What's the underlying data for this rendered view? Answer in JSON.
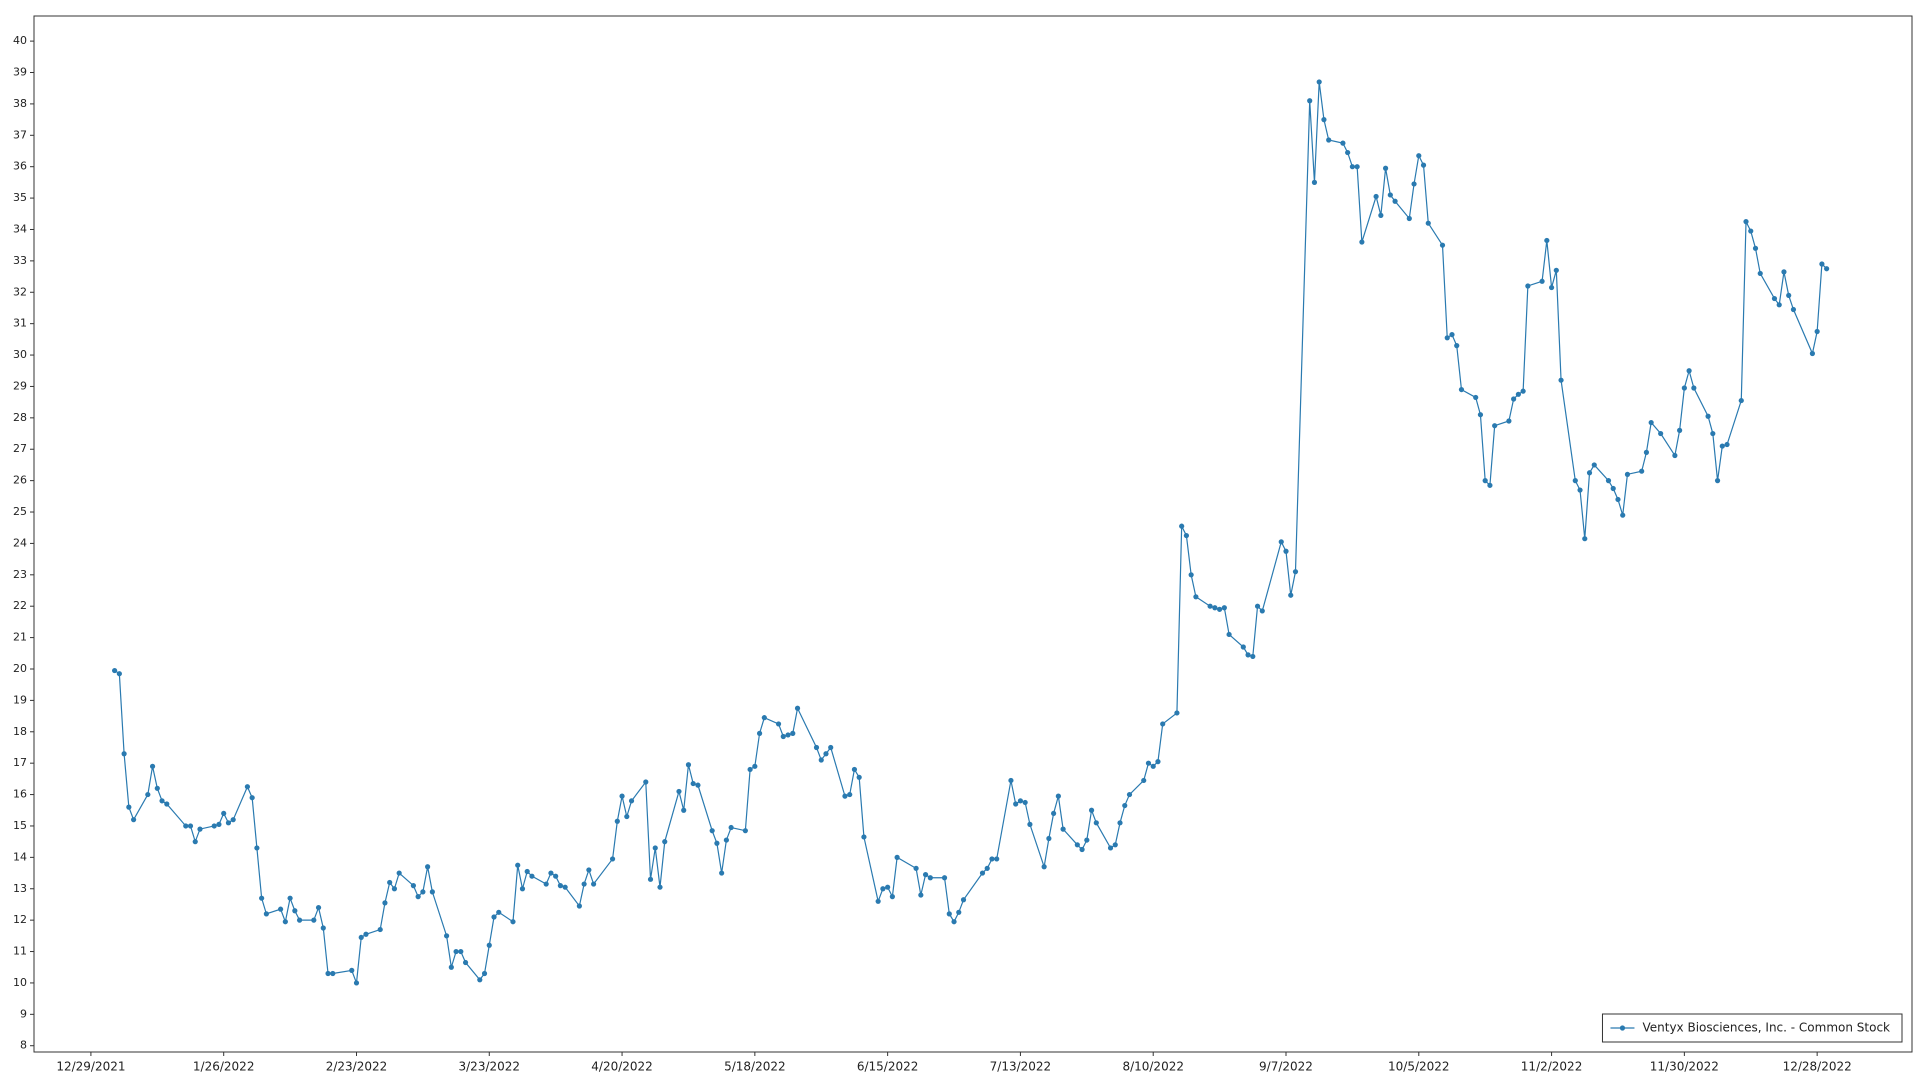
{
  "chart_data": {
    "type": "line",
    "x": [
      "2022-01-03",
      "2022-01-04",
      "2022-01-05",
      "2022-01-06",
      "2022-01-07",
      "2022-01-10",
      "2022-01-11",
      "2022-01-12",
      "2022-01-13",
      "2022-01-14",
      "2022-01-18",
      "2022-01-19",
      "2022-01-20",
      "2022-01-21",
      "2022-01-24",
      "2022-01-25",
      "2022-01-26",
      "2022-01-27",
      "2022-01-28",
      "2022-01-31",
      "2022-02-01",
      "2022-02-02",
      "2022-02-03",
      "2022-02-04",
      "2022-02-07",
      "2022-02-08",
      "2022-02-09",
      "2022-02-10",
      "2022-02-11",
      "2022-02-14",
      "2022-02-15",
      "2022-02-16",
      "2022-02-17",
      "2022-02-18",
      "2022-02-22",
      "2022-02-23",
      "2022-02-24",
      "2022-02-25",
      "2022-02-28",
      "2022-03-01",
      "2022-03-02",
      "2022-03-03",
      "2022-03-04",
      "2022-03-07",
      "2022-03-08",
      "2022-03-09",
      "2022-03-10",
      "2022-03-11",
      "2022-03-14",
      "2022-03-15",
      "2022-03-16",
      "2022-03-17",
      "2022-03-18",
      "2022-03-21",
      "2022-03-22",
      "2022-03-23",
      "2022-03-24",
      "2022-03-25",
      "2022-03-28",
      "2022-03-29",
      "2022-03-30",
      "2022-03-31",
      "2022-04-01",
      "2022-04-04",
      "2022-04-05",
      "2022-04-06",
      "2022-04-07",
      "2022-04-08",
      "2022-04-11",
      "2022-04-12",
      "2022-04-13",
      "2022-04-14",
      "2022-04-18",
      "2022-04-19",
      "2022-04-20",
      "2022-04-21",
      "2022-04-22",
      "2022-04-25",
      "2022-04-26",
      "2022-04-27",
      "2022-04-28",
      "2022-04-29",
      "2022-05-02",
      "2022-05-03",
      "2022-05-04",
      "2022-05-05",
      "2022-05-06",
      "2022-05-09",
      "2022-05-10",
      "2022-05-11",
      "2022-05-12",
      "2022-05-13",
      "2022-05-16",
      "2022-05-17",
      "2022-05-18",
      "2022-05-19",
      "2022-05-20",
      "2022-05-23",
      "2022-05-24",
      "2022-05-25",
      "2022-05-26",
      "2022-05-27",
      "2022-05-31",
      "2022-06-01",
      "2022-06-02",
      "2022-06-03",
      "2022-06-06",
      "2022-06-07",
      "2022-06-08",
      "2022-06-09",
      "2022-06-10",
      "2022-06-13",
      "2022-06-14",
      "2022-06-15",
      "2022-06-16",
      "2022-06-17",
      "2022-06-21",
      "2022-06-22",
      "2022-06-23",
      "2022-06-24",
      "2022-06-27",
      "2022-06-28",
      "2022-06-29",
      "2022-06-30",
      "2022-07-01",
      "2022-07-05",
      "2022-07-06",
      "2022-07-07",
      "2022-07-08",
      "2022-07-11",
      "2022-07-12",
      "2022-07-13",
      "2022-07-14",
      "2022-07-15",
      "2022-07-18",
      "2022-07-19",
      "2022-07-20",
      "2022-07-21",
      "2022-07-22",
      "2022-07-25",
      "2022-07-26",
      "2022-07-27",
      "2022-07-28",
      "2022-07-29",
      "2022-08-01",
      "2022-08-02",
      "2022-08-03",
      "2022-08-04",
      "2022-08-05",
      "2022-08-08",
      "2022-08-09",
      "2022-08-10",
      "2022-08-11",
      "2022-08-12",
      "2022-08-15",
      "2022-08-16",
      "2022-08-17",
      "2022-08-18",
      "2022-08-19",
      "2022-08-22",
      "2022-08-23",
      "2022-08-24",
      "2022-08-25",
      "2022-08-26",
      "2022-08-29",
      "2022-08-30",
      "2022-08-31",
      "2022-09-01",
      "2022-09-02",
      "2022-09-06",
      "2022-09-07",
      "2022-09-08",
      "2022-09-09",
      "2022-09-12",
      "2022-09-13",
      "2022-09-14",
      "2022-09-15",
      "2022-09-16",
      "2022-09-19",
      "2022-09-20",
      "2022-09-21",
      "2022-09-22",
      "2022-09-23",
      "2022-09-26",
      "2022-09-27",
      "2022-09-28",
      "2022-09-29",
      "2022-09-30",
      "2022-10-03",
      "2022-10-04",
      "2022-10-05",
      "2022-10-06",
      "2022-10-07",
      "2022-10-10",
      "2022-10-11",
      "2022-10-12",
      "2022-10-13",
      "2022-10-14",
      "2022-10-17",
      "2022-10-18",
      "2022-10-19",
      "2022-10-20",
      "2022-10-21",
      "2022-10-24",
      "2022-10-25",
      "2022-10-26",
      "2022-10-27",
      "2022-10-28",
      "2022-10-31",
      "2022-11-01",
      "2022-11-02",
      "2022-11-03",
      "2022-11-04",
      "2022-11-07",
      "2022-11-08",
      "2022-11-09",
      "2022-11-10",
      "2022-11-11",
      "2022-11-14",
      "2022-11-15",
      "2022-11-16",
      "2022-11-17",
      "2022-11-18",
      "2022-11-21",
      "2022-11-22",
      "2022-11-23",
      "2022-11-25",
      "2022-11-28",
      "2022-11-29",
      "2022-11-30",
      "2022-12-01",
      "2022-12-02",
      "2022-12-05",
      "2022-12-06",
      "2022-12-07",
      "2022-12-08",
      "2022-12-09",
      "2022-12-12",
      "2022-12-13",
      "2022-12-14",
      "2022-12-15",
      "2022-12-16",
      "2022-12-19",
      "2022-12-20",
      "2022-12-21",
      "2022-12-22",
      "2022-12-23",
      "2022-12-27",
      "2022-12-28",
      "2022-12-29",
      "2022-12-30"
    ],
    "series": [
      {
        "name": "Ventyx Biosciences, Inc. - Common Stock",
        "color": "#2a7ab0",
        "values": [
          19.95,
          19.85,
          17.3,
          15.6,
          15.2,
          16.0,
          16.9,
          16.2,
          15.8,
          15.7,
          15.0,
          15.0,
          14.5,
          14.9,
          15.0,
          15.05,
          15.4,
          15.1,
          15.2,
          16.25,
          15.9,
          14.3,
          12.7,
          12.2,
          12.35,
          11.95,
          12.7,
          12.3,
          12.0,
          12.0,
          12.4,
          11.75,
          10.3,
          10.3,
          10.4,
          10.0,
          11.45,
          11.55,
          11.7,
          12.55,
          13.2,
          13.0,
          13.5,
          13.1,
          12.75,
          12.9,
          13.7,
          12.9,
          11.5,
          10.5,
          11.0,
          11.0,
          10.65,
          10.1,
          10.3,
          11.2,
          12.1,
          12.25,
          11.95,
          13.75,
          13.0,
          13.55,
          13.4,
          13.15,
          13.5,
          13.4,
          13.1,
          13.05,
          12.45,
          13.15,
          13.6,
          13.15,
          13.95,
          15.15,
          15.95,
          15.3,
          15.8,
          16.4,
          13.3,
          14.3,
          13.05,
          14.5,
          16.1,
          15.5,
          16.95,
          16.35,
          16.3,
          14.85,
          14.45,
          13.5,
          14.55,
          14.95,
          14.85,
          16.8,
          16.9,
          17.95,
          18.45,
          18.25,
          17.85,
          17.9,
          17.95,
          18.75,
          17.5,
          17.1,
          17.3,
          17.5,
          15.95,
          16.0,
          16.8,
          16.55,
          14.65,
          12.6,
          13.0,
          13.05,
          12.75,
          14.0,
          13.65,
          12.8,
          13.45,
          13.35,
          13.35,
          12.2,
          11.95,
          12.25,
          12.65,
          13.5,
          13.65,
          13.95,
          13.95,
          16.45,
          15.7,
          15.8,
          15.75,
          15.05,
          13.7,
          14.6,
          15.4,
          15.95,
          14.9,
          14.4,
          14.25,
          14.55,
          15.5,
          15.1,
          14.3,
          14.4,
          15.1,
          15.65,
          16.0,
          16.45,
          17.0,
          16.9,
          17.05,
          18.25,
          18.6,
          24.55,
          24.25,
          23.0,
          22.3,
          22.0,
          21.95,
          21.9,
          21.95,
          21.1,
          20.7,
          20.45,
          20.4,
          22.0,
          21.85,
          24.05,
          23.75,
          22.35,
          23.1,
          38.1,
          35.5,
          38.7,
          37.5,
          36.85,
          36.75,
          36.45,
          36.0,
          36.0,
          33.6,
          35.05,
          34.45,
          35.95,
          35.1,
          34.9,
          34.35,
          35.45,
          36.35,
          36.05,
          34.2,
          33.5,
          30.55,
          30.65,
          30.3,
          28.9,
          28.65,
          28.1,
          26.0,
          25.85,
          27.75,
          27.9,
          28.6,
          28.75,
          28.85,
          32.2,
          32.35,
          33.65,
          32.15,
          32.7,
          29.2,
          26.0,
          25.7,
          24.15,
          26.25,
          26.5,
          26.0,
          25.75,
          25.4,
          24.9,
          26.2,
          26.3,
          26.9,
          27.85,
          27.5,
          26.8,
          27.6,
          28.95,
          29.5,
          28.95,
          28.05,
          27.5,
          26.0,
          27.1,
          27.15,
          28.55,
          34.25,
          33.95,
          33.4,
          32.6,
          31.8,
          31.6,
          32.65,
          31.9,
          31.45,
          30.05,
          30.75,
          32.9,
          32.75
        ]
      }
    ],
    "xlim": [
      "2021-12-17",
      "2023-01-17"
    ],
    "xticks": [
      {
        "value": "2021-12-29",
        "label": "12/29/2021"
      },
      {
        "value": "2022-01-26",
        "label": "1/26/2022"
      },
      {
        "value": "2022-02-23",
        "label": "2/23/2022"
      },
      {
        "value": "2022-03-23",
        "label": "3/23/2022"
      },
      {
        "value": "2022-04-20",
        "label": "4/20/2022"
      },
      {
        "value": "2022-05-18",
        "label": "5/18/2022"
      },
      {
        "value": "2022-06-15",
        "label": "6/15/2022"
      },
      {
        "value": "2022-07-13",
        "label": "7/13/2022"
      },
      {
        "value": "2022-08-10",
        "label": "8/10/2022"
      },
      {
        "value": "2022-09-07",
        "label": "9/7/2022"
      },
      {
        "value": "2022-10-05",
        "label": "10/5/2022"
      },
      {
        "value": "2022-11-02",
        "label": "11/2/2022"
      },
      {
        "value": "2022-11-30",
        "label": "11/30/2022"
      },
      {
        "value": "2022-12-28",
        "label": "12/28/2022"
      }
    ],
    "ylim": [
      7.8,
      40.8
    ],
    "yticks": [
      8,
      9,
      10,
      11,
      12,
      13,
      14,
      15,
      16,
      17,
      18,
      19,
      20,
      21,
      22,
      23,
      24,
      25,
      26,
      27,
      28,
      29,
      30,
      31,
      32,
      33,
      34,
      35,
      36,
      37,
      38,
      39,
      40
    ],
    "grid": true,
    "legend": "bottom-right"
  }
}
